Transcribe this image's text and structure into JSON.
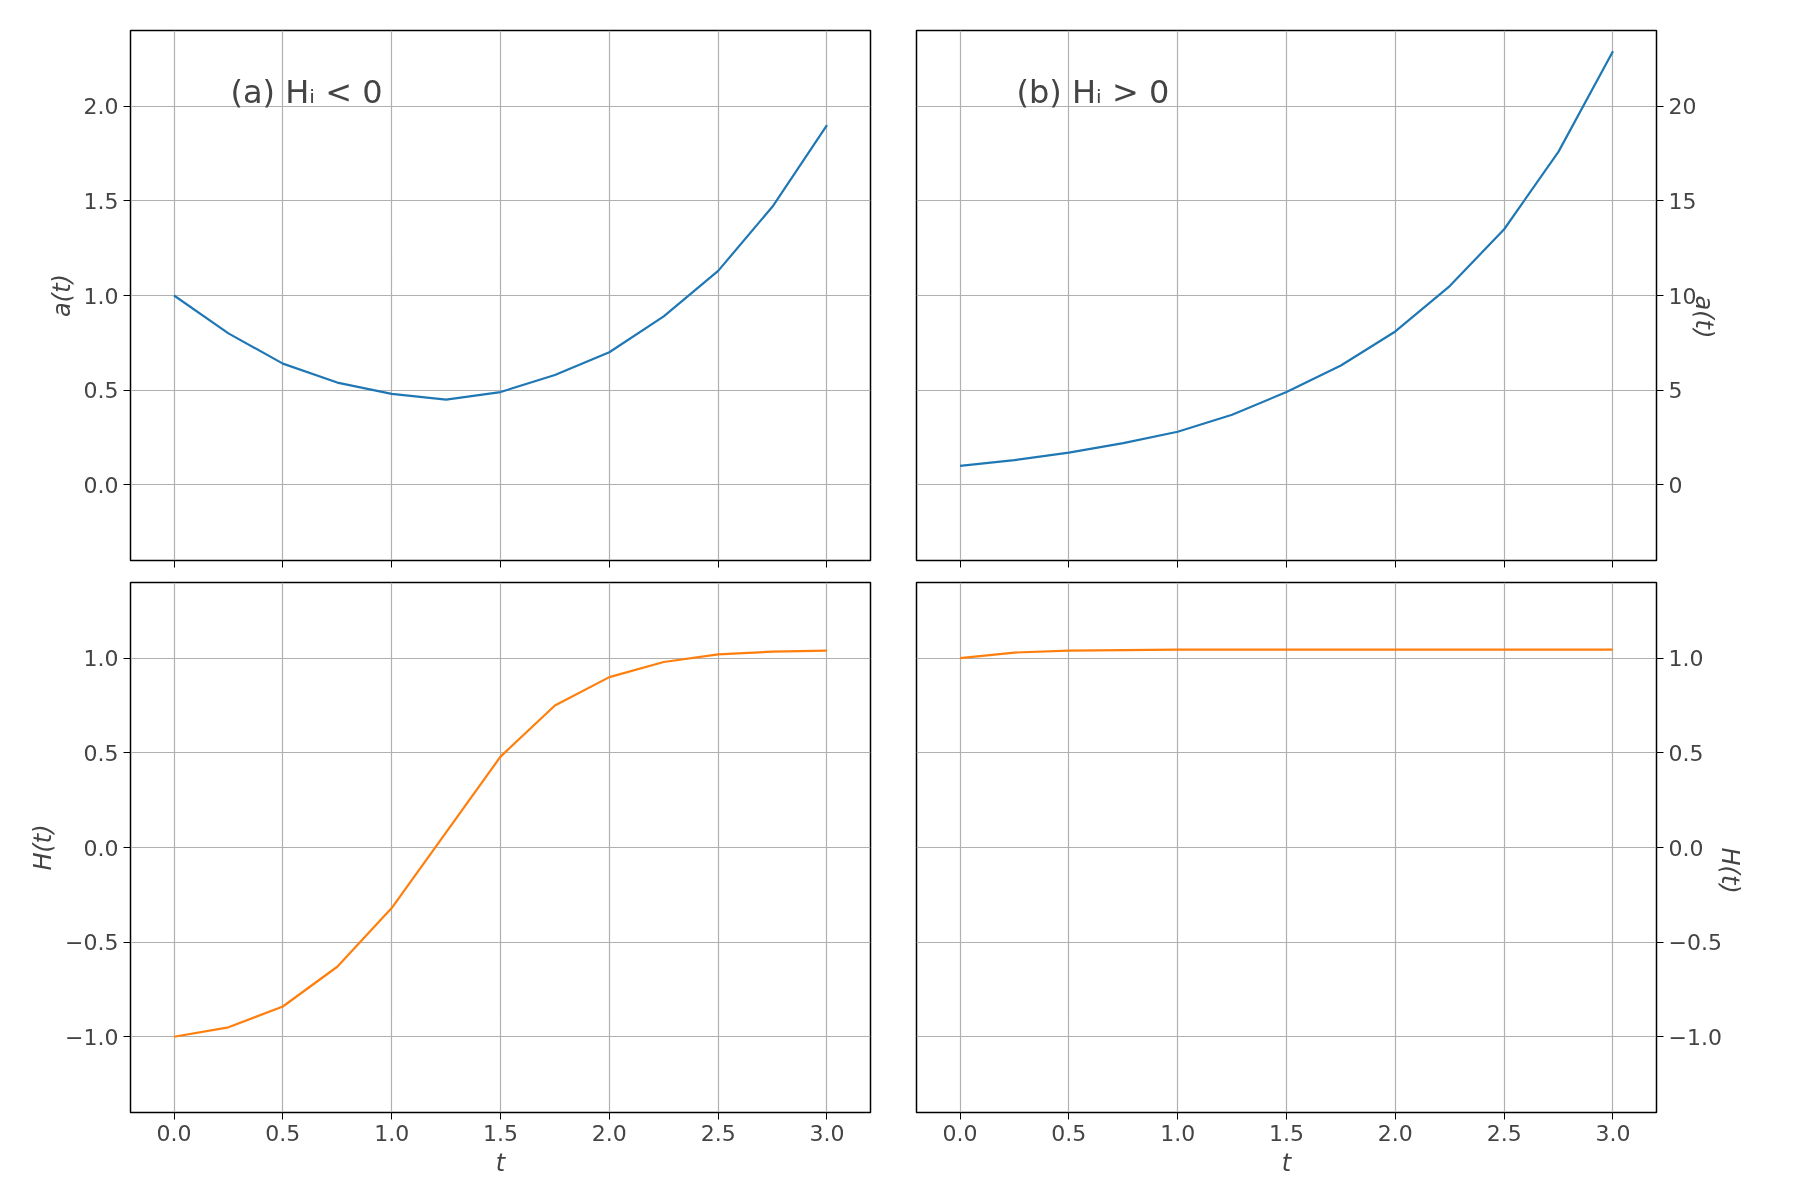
{
  "chart_data": [
    {
      "type": "line",
      "ylabel": "a(t)",
      "annotations": [
        "(a)  Hᵢ < 0"
      ],
      "grid": true,
      "tick_labels": "y",
      "xlim": [
        -0.2,
        3.2
      ],
      "ylim": [
        -0.4,
        2.4
      ],
      "xticks": [
        {
          "value": 0,
          "label": null
        },
        {
          "value": 0.5,
          "label": null
        },
        {
          "value": 1,
          "label": null
        },
        {
          "value": 1.5,
          "label": null
        },
        {
          "value": 2,
          "label": null
        },
        {
          "value": 2.5,
          "label": null
        },
        {
          "value": 3,
          "label": null
        }
      ],
      "yticks": [
        {
          "value": 0,
          "label": "0.0"
        },
        {
          "value": 0.5,
          "label": "0.5"
        },
        {
          "value": 1,
          "label": "1.0"
        },
        {
          "value": 1.5,
          "label": "1.5"
        },
        {
          "value": 2,
          "label": "2.0"
        }
      ],
      "x": [
        0,
        0.25,
        0.5,
        0.75,
        1,
        1.25,
        1.5,
        1.75,
        2,
        2.25,
        2.5,
        2.75,
        3
      ],
      "series": [
        {
          "color": "#1f77b4",
          "values": [
            1.0,
            0.8,
            0.64,
            0.54,
            0.48,
            0.45,
            0.49,
            0.58,
            0.7,
            0.89,
            1.13,
            1.47,
            1.9
          ]
        }
      ]
    },
    {
      "type": "line",
      "ylabel": "a(t)",
      "annotations": [
        "(b)  Hᵢ > 0"
      ],
      "grid": true,
      "tick_labels": "y",
      "xlim": [
        -0.2,
        3.2
      ],
      "ylim": [
        -4,
        24
      ],
      "xticks": [
        {
          "value": 0,
          "label": null
        },
        {
          "value": 0.5,
          "label": null
        },
        {
          "value": 1,
          "label": null
        },
        {
          "value": 1.5,
          "label": null
        },
        {
          "value": 2,
          "label": null
        },
        {
          "value": 2.5,
          "label": null
        },
        {
          "value": 3,
          "label": null
        }
      ],
      "yticks": [
        0,
        5,
        10,
        15,
        20
      ],
      "x": [
        0,
        0.25,
        0.5,
        0.75,
        1,
        1.25,
        1.5,
        1.75,
        2,
        2.25,
        2.5,
        2.75,
        3
      ],
      "series": [
        {
          "color": "#1f77b4",
          "values": [
            1.0,
            1.3,
            1.7,
            2.2,
            2.8,
            3.7,
            4.9,
            6.3,
            8.1,
            10.5,
            13.5,
            17.6,
            22.9
          ]
        }
      ]
    },
    {
      "type": "line",
      "xlabel": "t",
      "ylabel": "H(t)",
      "grid": true,
      "xlim": [
        -0.2,
        3.2
      ],
      "ylim": [
        -1.4,
        1.4
      ],
      "xticks": [
        {
          "value": 0,
          "label": "0.0"
        },
        {
          "value": 0.5,
          "label": "0.5"
        },
        {
          "value": 1,
          "label": "1.0"
        },
        {
          "value": 1.5,
          "label": "1.5"
        },
        {
          "value": 2,
          "label": "2.0"
        },
        {
          "value": 2.5,
          "label": "2.5"
        },
        {
          "value": 3,
          "label": "3.0"
        }
      ],
      "yticks": [
        {
          "value": -1,
          "label": "−1.0"
        },
        {
          "value": -0.5,
          "label": "−0.5"
        },
        {
          "value": 0,
          "label": "0.0"
        },
        {
          "value": 0.5,
          "label": "0.5"
        },
        {
          "value": 1,
          "label": "1.0"
        }
      ],
      "x": [
        0,
        0.25,
        0.5,
        0.75,
        1,
        1.25,
        1.5,
        1.75,
        2,
        2.25,
        2.5,
        2.75,
        3
      ],
      "series": [
        {
          "color": "#ff7f0e",
          "values": [
            -1.0,
            -0.95,
            -0.84,
            -0.63,
            -0.32,
            0.08,
            0.48,
            0.75,
            0.9,
            0.98,
            1.02,
            1.035,
            1.04
          ]
        }
      ]
    },
    {
      "type": "line",
      "xlabel": "t",
      "ylabel": "H(t)",
      "grid": true,
      "xlim": [
        -0.2,
        3.2
      ],
      "ylim": [
        -1.4,
        1.4
      ],
      "xticks": [
        {
          "value": 0,
          "label": "0.0"
        },
        {
          "value": 0.5,
          "label": "0.5"
        },
        {
          "value": 1,
          "label": "1.0"
        },
        {
          "value": 1.5,
          "label": "1.5"
        },
        {
          "value": 2,
          "label": "2.0"
        },
        {
          "value": 2.5,
          "label": "2.5"
        },
        {
          "value": 3,
          "label": "3.0"
        }
      ],
      "yticks": [
        {
          "value": -1,
          "label": "−1.0"
        },
        {
          "value": -0.5,
          "label": "−0.5"
        },
        {
          "value": 0,
          "label": "0.0"
        },
        {
          "value": 0.5,
          "label": "0.5"
        },
        {
          "value": 1,
          "label": "1.0"
        }
      ],
      "x": [
        0,
        0.25,
        0.5,
        0.75,
        1,
        1.5,
        2,
        2.5,
        3
      ],
      "series": [
        {
          "color": "#ff7f0e",
          "values": [
            1.0,
            1.03,
            1.04,
            1.043,
            1.045,
            1.045,
            1.045,
            1.045,
            1.045
          ]
        }
      ]
    }
  ]
}
